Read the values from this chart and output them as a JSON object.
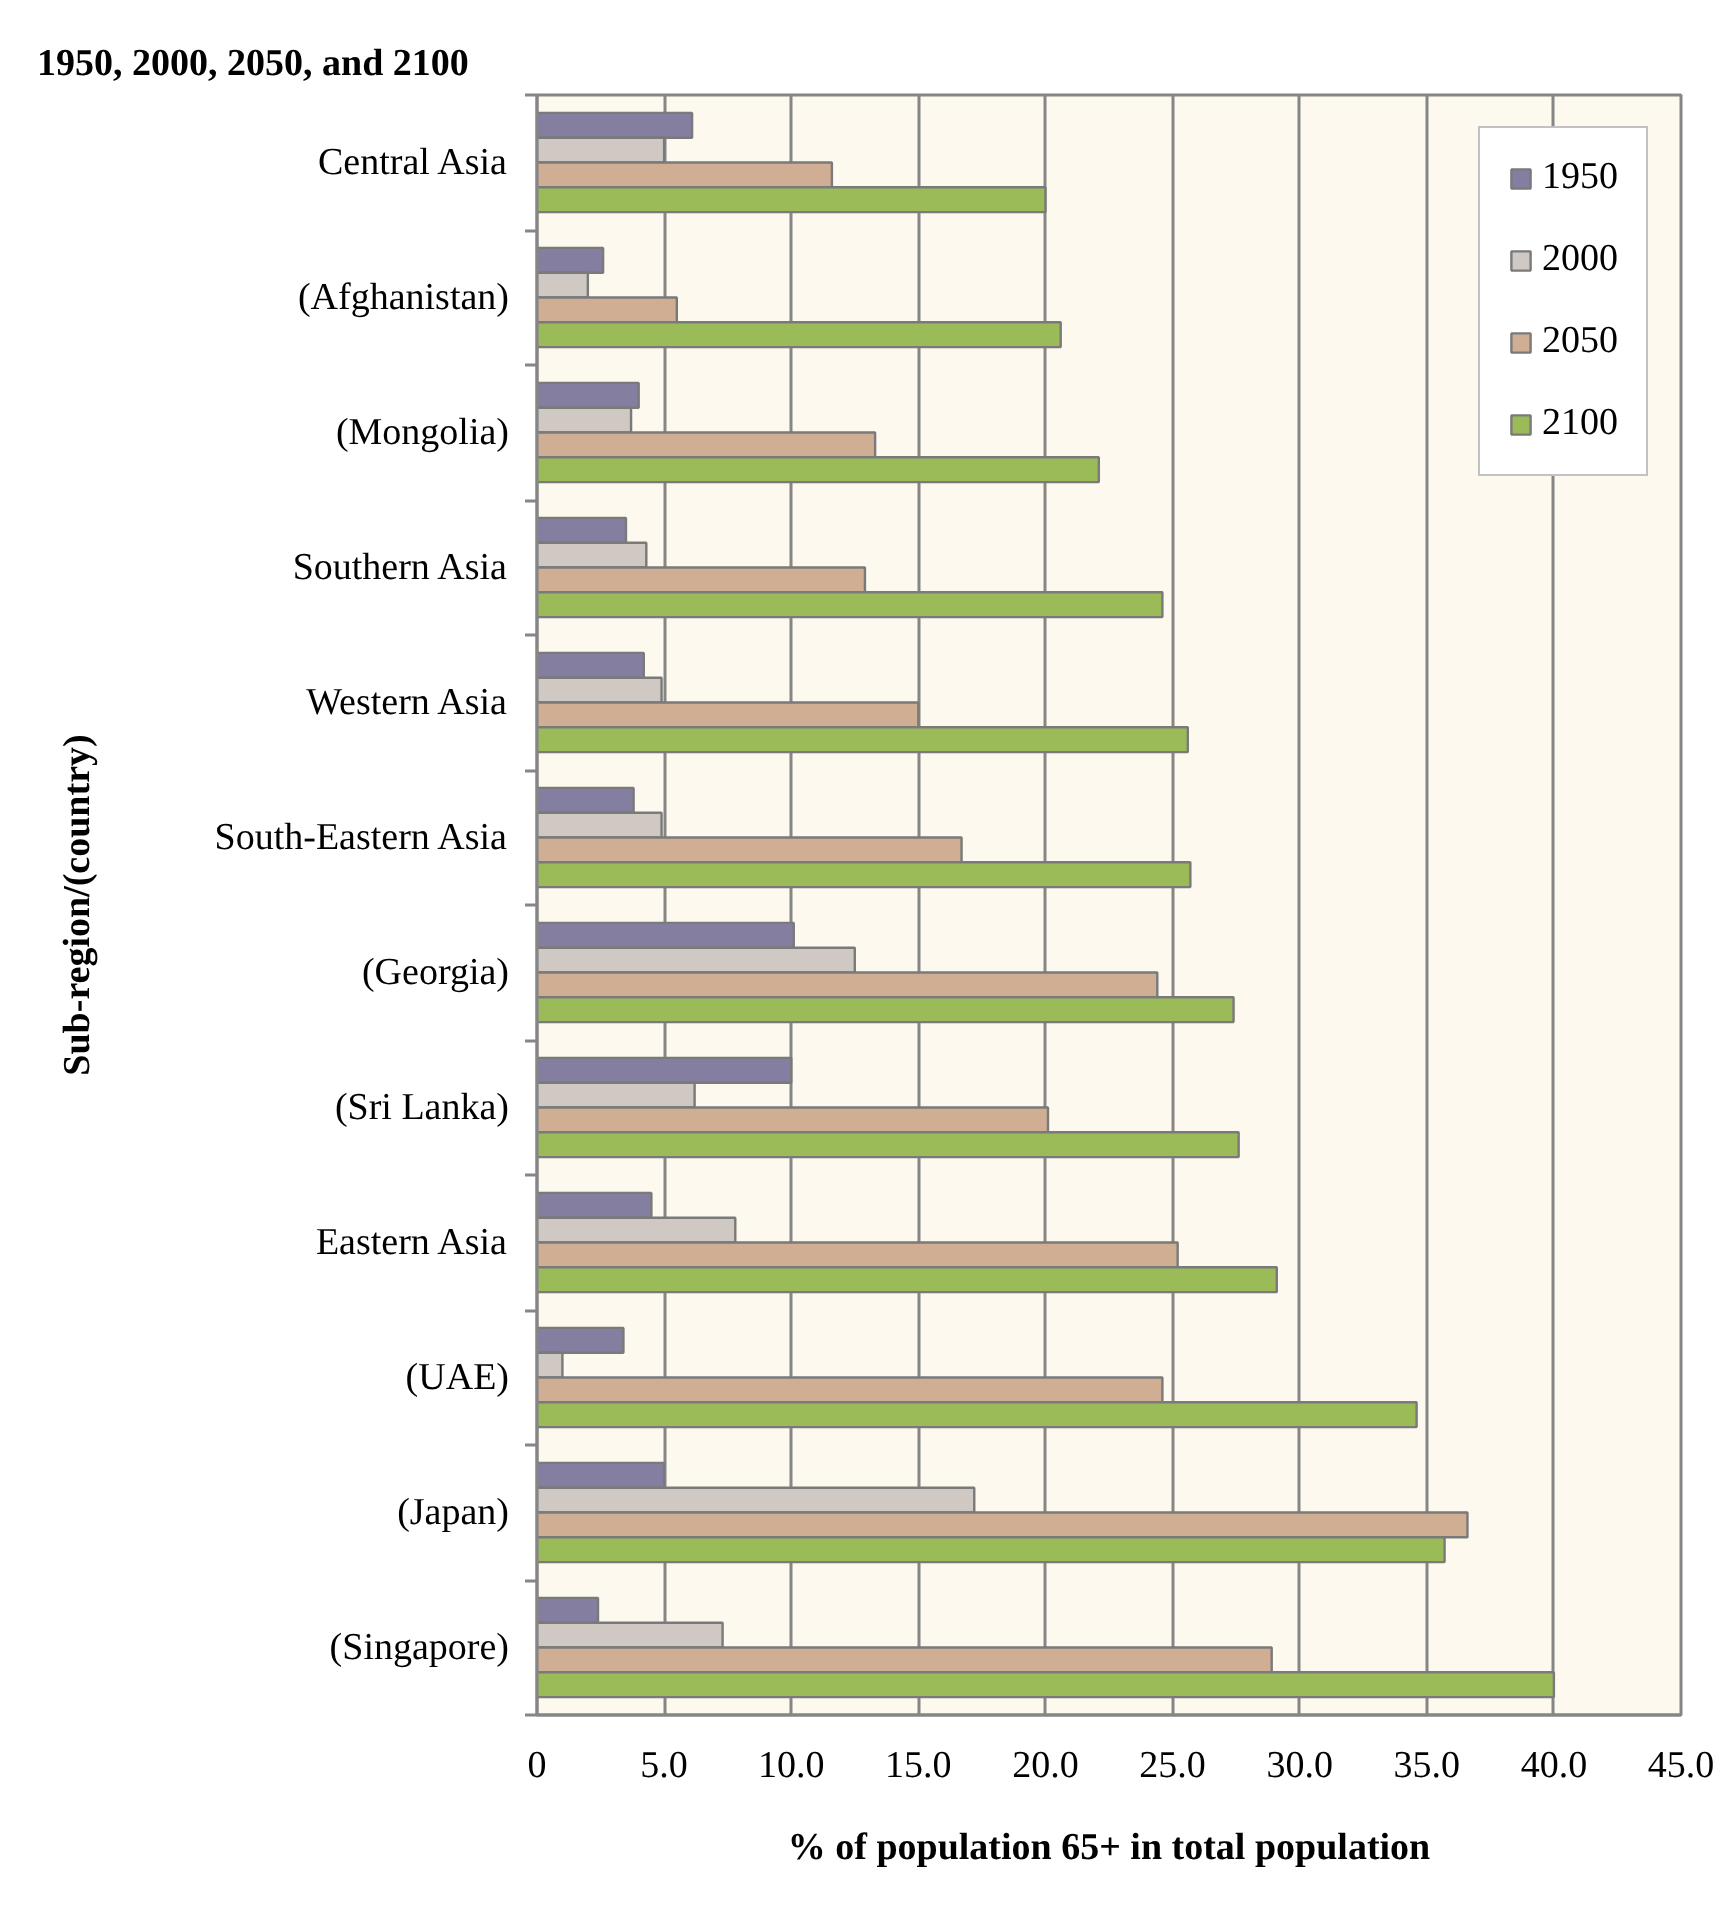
{
  "chart_data": {
    "type": "bar",
    "orientation": "horizontal",
    "title": "1950, 2000, 2050, and 2100",
    "xlabel": "% of population 65+ in total population",
    "ylabel": "Sub-region/(country)",
    "categories": [
      "Central Asia",
      "(Afghanistan)",
      "(Mongolia)",
      "Southern Asia",
      "Western Asia",
      "South-Eastern Asia",
      "(Georgia)",
      "(Sri Lanka)",
      "Eastern Asia",
      "(UAE)",
      "(Japan)",
      "(Singapore)"
    ],
    "series": [
      {
        "name": "1950",
        "color": "#847fa0",
        "values": [
          6.1,
          2.6,
          4.0,
          3.5,
          4.2,
          3.8,
          10.1,
          10.0,
          4.5,
          3.4,
          5.0,
          2.4
        ]
      },
      {
        "name": "2000",
        "color": "#cfc8c3",
        "values": [
          5.0,
          2.0,
          3.7,
          4.3,
          4.9,
          4.9,
          12.5,
          6.2,
          7.8,
          1.0,
          17.2,
          7.3
        ]
      },
      {
        "name": "2050",
        "color": "#cfae94",
        "values": [
          11.6,
          5.5,
          13.3,
          12.9,
          15.0,
          16.7,
          24.4,
          20.1,
          25.2,
          24.6,
          36.6,
          28.9
        ]
      },
      {
        "name": "2100",
        "color": "#9bbb59",
        "values": [
          20.0,
          20.6,
          22.1,
          24.6,
          25.6,
          25.7,
          27.4,
          27.6,
          29.1,
          34.6,
          35.7,
          40.0
        ]
      }
    ],
    "xlim": [
      0,
      45
    ],
    "xticks": [
      0,
      {
        "value": 5,
        "label": "5.0"
      },
      {
        "value": 10,
        "label": "10.0"
      },
      {
        "value": 15,
        "label": "15.0"
      },
      {
        "value": 20,
        "label": "20.0"
      },
      {
        "value": 25,
        "label": "25.0"
      },
      {
        "value": 30,
        "label": "30.0"
      },
      {
        "value": 35,
        "label": "35.0"
      },
      {
        "value": 40,
        "label": "40.0"
      },
      {
        "value": 45,
        "label": "45.0"
      }
    ],
    "grid": "x",
    "legend": "top right"
  }
}
